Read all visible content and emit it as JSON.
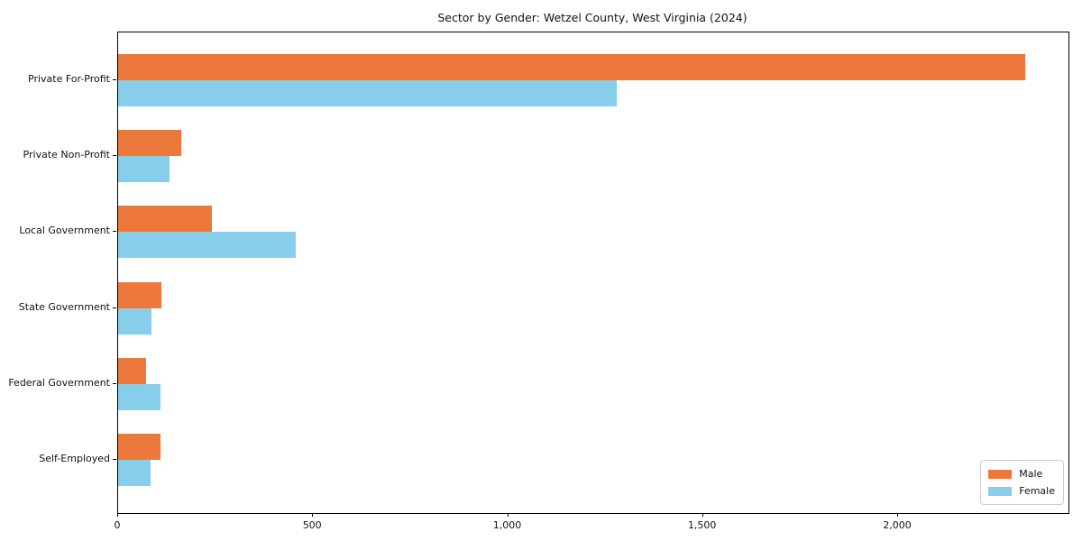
{
  "chart_data": {
    "type": "bar",
    "orientation": "horizontal",
    "title": "Sector by Gender: Wetzel County, West Virginia (2024)",
    "categories": [
      "Private For-Profit",
      "Private Non-Profit",
      "Local Government",
      "State Government",
      "Federal Government",
      "Self-Employed"
    ],
    "series": [
      {
        "name": "Male",
        "color": "#ec793b",
        "values": [
          2326,
          162,
          240,
          110,
          72,
          108
        ]
      },
      {
        "name": "Female",
        "color": "#87ceeb",
        "values": [
          1279,
          131,
          455,
          85,
          109,
          82
        ]
      }
    ],
    "xlabel": "",
    "ylabel": "",
    "xlim": [
      0,
      2437
    ],
    "xticks": [
      0,
      500,
      1000,
      1500,
      2000
    ],
    "grid": false,
    "legend_position": "lower right",
    "colors": {
      "male": "#ec793b",
      "female": "#87ceeb",
      "axis": "#000000",
      "background": "#ffffff"
    }
  }
}
